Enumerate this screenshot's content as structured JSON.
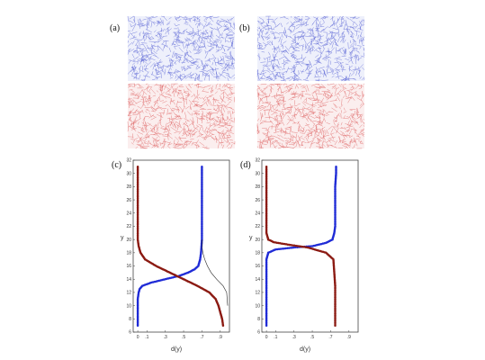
{
  "figure": {
    "panels": [
      {
        "label": "(a)",
        "type": "image",
        "description_colors": {
          "top": "#5a64d6",
          "bottom": "#e06a6a"
        }
      },
      {
        "label": "(b)",
        "type": "image",
        "description_colors": {
          "top": "#5a64d6",
          "bottom": "#e06a6a"
        }
      },
      {
        "label": "(c)",
        "type": "plot"
      },
      {
        "label": "(d)",
        "type": "plot"
      }
    ]
  },
  "colors": {
    "blue_series": "#1f2bd6",
    "red_series": "#8b1a12",
    "thin_line": "#222222",
    "particles_blue": "#6670d8",
    "particles_red": "#e07070"
  },
  "chart_data": [
    {
      "panel": "(c)",
      "type": "scatter",
      "xlabel": "d(y)",
      "ylabel": "y",
      "xticks": [
        "0",
        ".1",
        ".3",
        ".5",
        ".7",
        ".9"
      ],
      "yticks": [
        "6",
        "8",
        "10",
        "12",
        "14",
        "16",
        "18",
        "20",
        "22",
        "24",
        "26",
        "28",
        "30",
        "32"
      ],
      "xlim": [
        -0.05,
        1.0
      ],
      "ylim": [
        6,
        32
      ],
      "series": [
        {
          "color": "blue",
          "points": [
            [
              0.0,
              7
            ],
            [
              0.0,
              8
            ],
            [
              0.0,
              9
            ],
            [
              0.0,
              10
            ],
            [
              0.0,
              11
            ],
            [
              0.01,
              12
            ],
            [
              0.02,
              12.5
            ],
            [
              0.05,
              13
            ],
            [
              0.15,
              13.5
            ],
            [
              0.3,
              14
            ],
            [
              0.45,
              14.5
            ],
            [
              0.55,
              15
            ],
            [
              0.62,
              15.5
            ],
            [
              0.66,
              16
            ],
            [
              0.68,
              17
            ],
            [
              0.69,
              18
            ],
            [
              0.7,
              20
            ],
            [
              0.7,
              22
            ],
            [
              0.7,
              24
            ],
            [
              0.7,
              26
            ],
            [
              0.7,
              28
            ],
            [
              0.7,
              30
            ],
            [
              0.7,
              31
            ]
          ]
        },
        {
          "color": "red",
          "points": [
            [
              0.93,
              7
            ],
            [
              0.92,
              8
            ],
            [
              0.9,
              9
            ],
            [
              0.88,
              10
            ],
            [
              0.85,
              11
            ],
            [
              0.78,
              12
            ],
            [
              0.65,
              13
            ],
            [
              0.5,
              14
            ],
            [
              0.35,
              15
            ],
            [
              0.2,
              16
            ],
            [
              0.08,
              17
            ],
            [
              0.03,
              18
            ],
            [
              0.01,
              19
            ],
            [
              0.0,
              20
            ],
            [
              0.0,
              22
            ],
            [
              0.0,
              24
            ],
            [
              0.0,
              26
            ],
            [
              0.0,
              28
            ],
            [
              0.0,
              30
            ],
            [
              0.0,
              31
            ]
          ]
        },
        {
          "color": "black-thin",
          "points": [
            [
              0.98,
              10
            ],
            [
              0.97,
              12
            ],
            [
              0.93,
              13
            ],
            [
              0.86,
              14
            ],
            [
              0.8,
              15
            ],
            [
              0.76,
              16
            ],
            [
              0.73,
              17
            ],
            [
              0.71,
              18
            ],
            [
              0.7,
              19
            ],
            [
              0.7,
              20
            ]
          ]
        }
      ]
    },
    {
      "panel": "(d)",
      "type": "scatter",
      "xlabel": "d(y)",
      "ylabel": "y",
      "xticks": [
        "0",
        ".1",
        ".3",
        ".5",
        ".7",
        ".9"
      ],
      "yticks": [
        "6",
        "8",
        "10",
        "12",
        "14",
        "16",
        "18",
        "20",
        "22",
        "24",
        "26",
        "28",
        "30",
        "32"
      ],
      "xlim": [
        -0.05,
        1.0
      ],
      "ylim": [
        6,
        32
      ],
      "series": [
        {
          "color": "blue",
          "points": [
            [
              0.0,
              7
            ],
            [
              0.0,
              9
            ],
            [
              0.0,
              11
            ],
            [
              0.0,
              13
            ],
            [
              0.0,
              15
            ],
            [
              0.0,
              17
            ],
            [
              0.02,
              18
            ],
            [
              0.1,
              18.5
            ],
            [
              0.3,
              18.8
            ],
            [
              0.5,
              19
            ],
            [
              0.65,
              19.5
            ],
            [
              0.72,
              20
            ],
            [
              0.74,
              21
            ],
            [
              0.75,
              22
            ],
            [
              0.75,
              24
            ],
            [
              0.75,
              26
            ],
            [
              0.75,
              28
            ],
            [
              0.76,
              30
            ],
            [
              0.76,
              31
            ]
          ]
        },
        {
          "color": "red",
          "points": [
            [
              0.75,
              7
            ],
            [
              0.75,
              9
            ],
            [
              0.75,
              11
            ],
            [
              0.75,
              13
            ],
            [
              0.74,
              15
            ],
            [
              0.73,
              17
            ],
            [
              0.65,
              18
            ],
            [
              0.45,
              18.8
            ],
            [
              0.25,
              19.2
            ],
            [
              0.08,
              19.6
            ],
            [
              0.02,
              20
            ],
            [
              0.0,
              21
            ],
            [
              0.0,
              23
            ],
            [
              0.0,
              25
            ],
            [
              0.0,
              27
            ],
            [
              0.0,
              29
            ],
            [
              0.0,
              31
            ]
          ]
        }
      ]
    }
  ]
}
